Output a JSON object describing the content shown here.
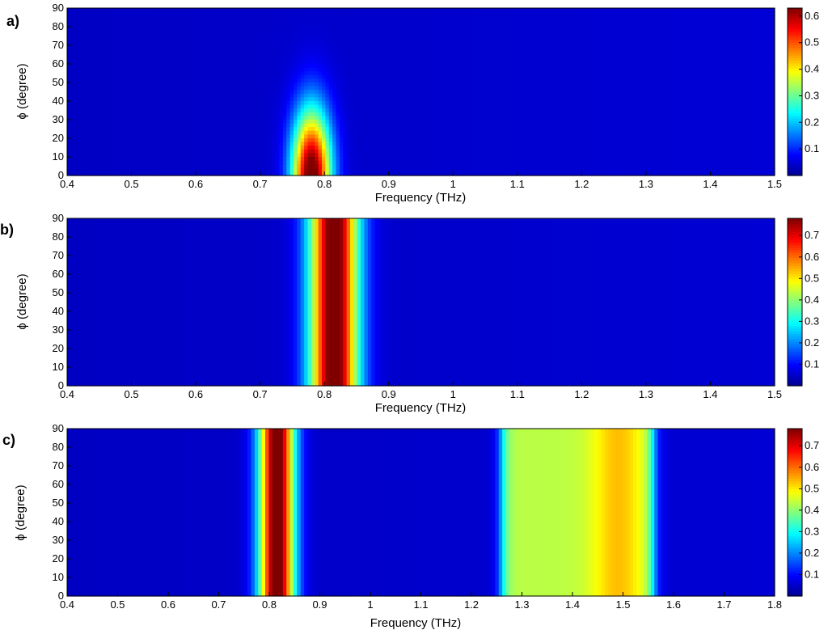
{
  "colormap": [
    "#00008f",
    "#0000ff",
    "#00ffff",
    "#ffff00",
    "#ff0000",
    "#800000"
  ],
  "chart_data": [
    {
      "type": "heatmap",
      "panel_label": "a)",
      "xlabel": "Frequency (THz)",
      "ylabel": "ϕ (degree)",
      "xlim": [
        0.4,
        1.5
      ],
      "ylim": [
        0,
        90
      ],
      "xticks": [
        "0.4",
        "0.5",
        "0.6",
        "0.7",
        "0.8",
        "0.9",
        "1",
        "1.1",
        "1.2",
        "1.3",
        "1.4",
        "1.5"
      ],
      "yticks": [
        "0",
        "10",
        "20",
        "30",
        "40",
        "50",
        "60",
        "70",
        "80",
        "90"
      ],
      "colorbar": {
        "min": 0,
        "max": 0.63,
        "ticks": [
          "0.1",
          "0.2",
          "0.3",
          "0.4",
          "0.5",
          "0.6"
        ]
      },
      "background": 0.05,
      "features": [
        {
          "kind": "angle-dependent-peak",
          "center_thz": 0.78,
          "width_thz": 0.03,
          "peak_value": 0.63,
          "decay_angle_deg": 35
        }
      ]
    },
    {
      "type": "heatmap",
      "panel_label": "b)",
      "xlabel": "Frequency (THz)",
      "ylabel": "ϕ (degree)",
      "xlim": [
        0.4,
        1.5
      ],
      "ylim": [
        0,
        90
      ],
      "xticks": [
        "0.4",
        "0.5",
        "0.6",
        "0.7",
        "0.8",
        "0.9",
        "1",
        "1.1",
        "1.2",
        "1.3",
        "1.4",
        "1.5"
      ],
      "yticks": [
        "0",
        "10",
        "20",
        "30",
        "40",
        "50",
        "60",
        "70",
        "80",
        "90"
      ],
      "colorbar": {
        "min": 0,
        "max": 0.78,
        "ticks": [
          "0.1",
          "0.2",
          "0.3",
          "0.4",
          "0.5",
          "0.6",
          "0.7"
        ]
      },
      "background": 0.06,
      "features": [
        {
          "kind": "band",
          "center_thz": 0.815,
          "width_thz": 0.038,
          "peak_value": 0.78
        }
      ]
    },
    {
      "type": "heatmap",
      "panel_label": "c)",
      "xlabel": "Frequency (THz)",
      "ylabel": "ϕ (degree)",
      "xlim": [
        0.4,
        1.8
      ],
      "ylim": [
        0,
        90
      ],
      "xticks": [
        "0.4",
        "0.5",
        "0.6",
        "0.7",
        "0.8",
        "0.9",
        "1",
        "1.1",
        "1.2",
        "1.3",
        "1.4",
        "1.5",
        "1.6",
        "1.7",
        "1.8"
      ],
      "yticks": [
        "0",
        "10",
        "20",
        "30",
        "40",
        "50",
        "60",
        "70",
        "80",
        "90"
      ],
      "colorbar": {
        "min": 0,
        "max": 0.78,
        "ticks": [
          "0.1",
          "0.2",
          "0.3",
          "0.4",
          "0.5",
          "0.6",
          "0.7"
        ]
      },
      "background": 0.06,
      "features": [
        {
          "kind": "band",
          "center_thz": 0.815,
          "width_thz": 0.035,
          "peak_value": 0.78
        },
        {
          "kind": "flat-band",
          "start_thz": 1.26,
          "end_thz": 1.56,
          "edge_thz": 0.02,
          "value": 0.38
        },
        {
          "kind": "band",
          "center_thz": 1.49,
          "width_thz": 0.05,
          "peak_value": 0.1
        }
      ]
    }
  ]
}
